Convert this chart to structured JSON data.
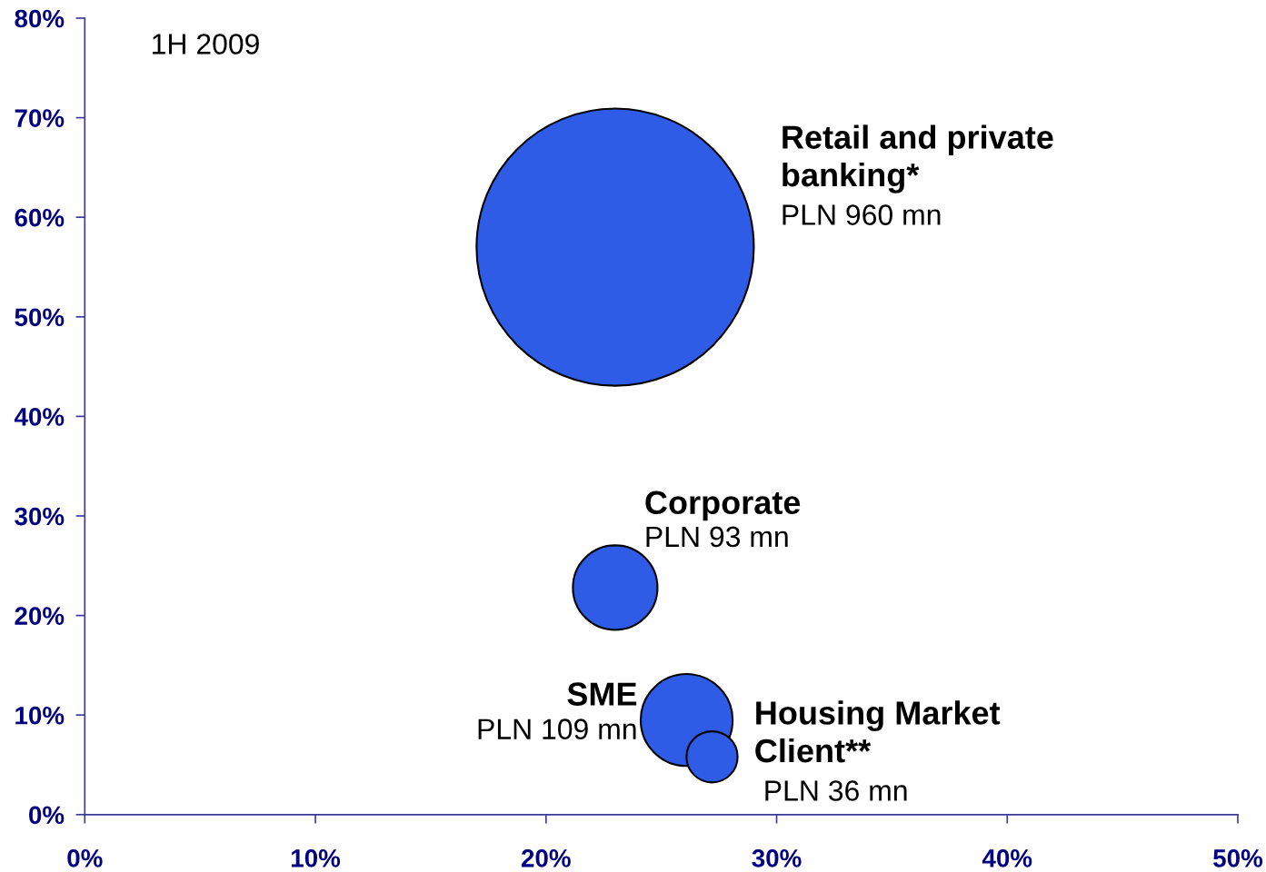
{
  "chart_data": {
    "type": "bubble",
    "annotations": [
      "1H 2009"
    ],
    "series": [
      {
        "name": "Retail and private\nbanking*",
        "color": "#2e5ce6",
        "x": [
          23.0
        ],
        "values": [
          57.0
        ],
        "sizes": [
          1
        ],
        "value_labels": [
          "PLN 960 mn"
        ]
      },
      {
        "name": "Corporate",
        "color": "#2e5ce6",
        "x": [
          23.0
        ],
        "values": [
          22.8
        ],
        "sizes": [
          0.093
        ],
        "value_labels": [
          "PLN 93 mn"
        ]
      },
      {
        "name": "SME",
        "color": "#2e5ce6",
        "x": [
          26.1
        ],
        "values": [
          9.5
        ],
        "sizes": [
          0.11
        ],
        "value_labels": [
          "PLN 109 mn"
        ]
      },
      {
        "name": "Housing Market\nClient**",
        "color": "#2e5ce6",
        "x": [
          27.2
        ],
        "values": [
          5.8
        ],
        "sizes": [
          0.034
        ],
        "value_labels": [
          "PLN 36 mn"
        ]
      }
    ],
    "xlim": [
      0,
      50
    ],
    "xticks": [
      {
        "value": 0,
        "label": "0%"
      },
      {
        "value": 10,
        "label": "10%"
      },
      {
        "value": 20,
        "label": "20%"
      },
      {
        "value": 30,
        "label": "30%"
      },
      {
        "value": 40,
        "label": "40%"
      },
      {
        "value": 50,
        "label": "50%"
      }
    ],
    "ylim": [
      0,
      80
    ],
    "yticks": [
      {
        "value": 0,
        "label": "0%"
      },
      {
        "value": 10,
        "label": "10%"
      },
      {
        "value": 20,
        "label": "20%"
      },
      {
        "value": 30,
        "label": "30%"
      },
      {
        "value": 40,
        "label": "40%"
      },
      {
        "value": 50,
        "label": "50%"
      },
      {
        "value": 60,
        "label": "60%"
      },
      {
        "value": 70,
        "label": "70%"
      },
      {
        "value": 80,
        "label": "80%"
      }
    ],
    "grid": false
  }
}
